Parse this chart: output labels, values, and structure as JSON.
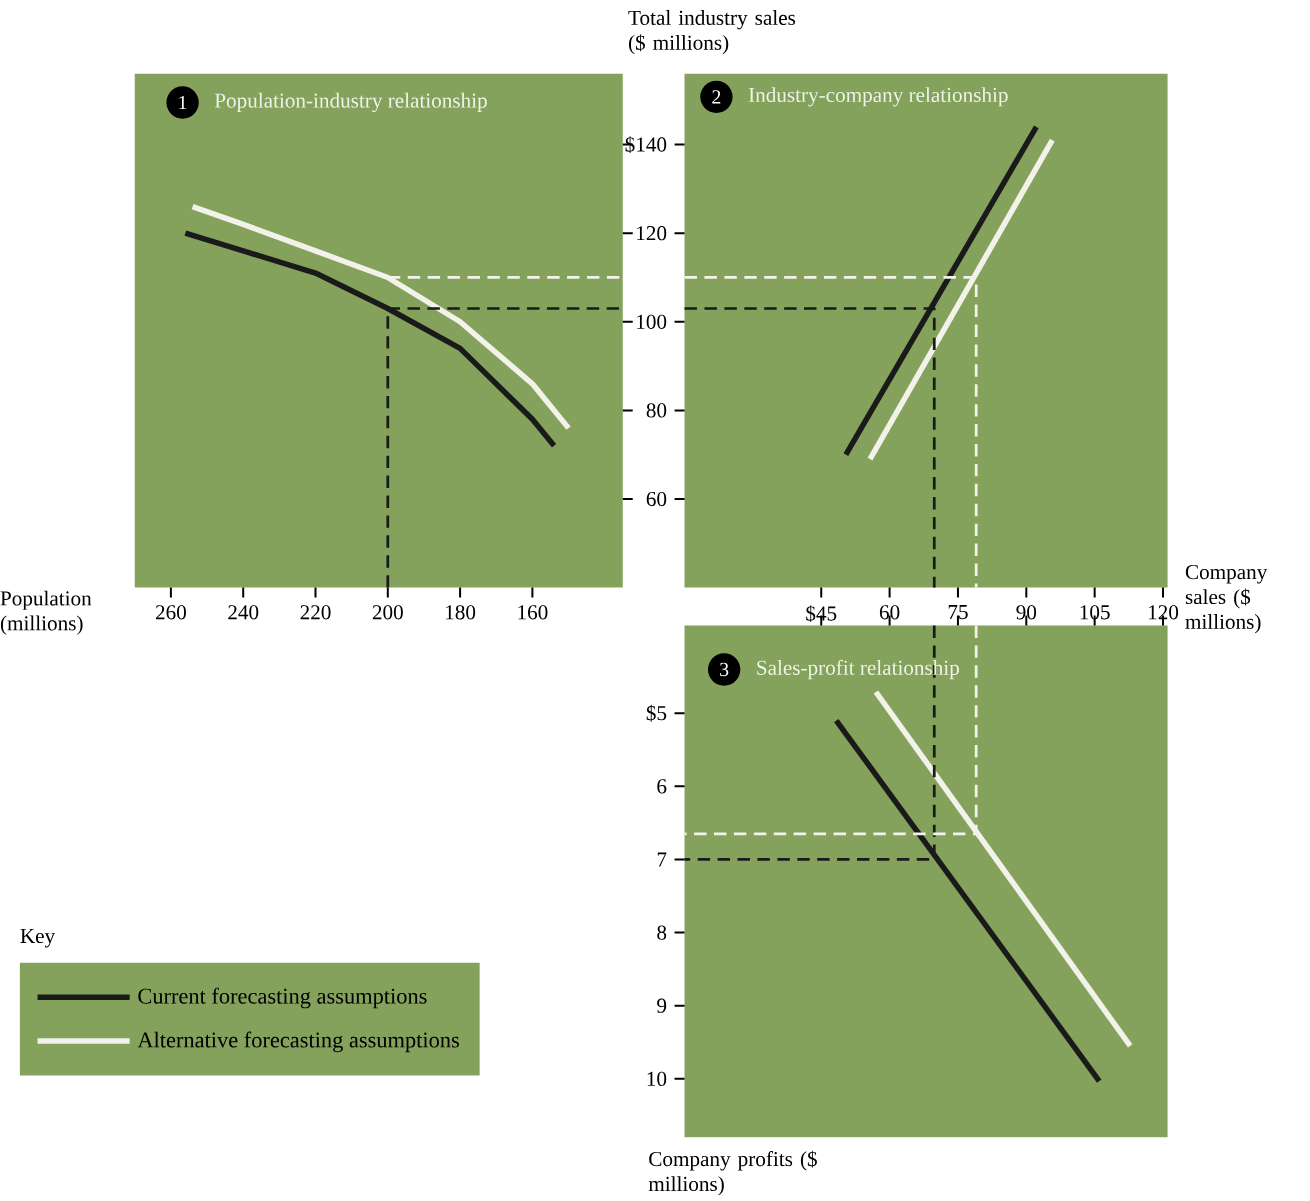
{
  "chart_data": [
    {
      "type": "line",
      "title": "Population-industry relationship",
      "annotations": [
        "1"
      ],
      "xlabel": "Population (millions)",
      "xlim": [
        270,
        135
      ],
      "xticks": [
        260,
        240,
        220,
        200,
        180,
        160
      ],
      "ylim": [
        40,
        156
      ],
      "yticks": [
        60,
        80,
        100,
        120,
        140
      ],
      "tick_labels": "x",
      "series": [
        {
          "color": "#1a1a1a",
          "x": [
            256,
            240,
            220,
            200,
            180,
            160,
            154
          ],
          "values": [
            120,
            116,
            111,
            103,
            94,
            78,
            72
          ]
        },
        {
          "color": "#f2f2ea",
          "x": [
            254,
            240,
            220,
            200,
            180,
            160,
            150
          ],
          "values": [
            126,
            122,
            116,
            110,
            100,
            86,
            76
          ]
        },
        {
          "color": "#1a1a1a",
          "line_style": "dashed",
          "x": [
            200,
            200,
            135
          ],
          "values": [
            40,
            103,
            103
          ]
        },
        {
          "color": "#f2f2ea",
          "line_style": "dashed",
          "x": [
            200,
            135
          ],
          "values": [
            110,
            110
          ]
        }
      ]
    },
    {
      "type": "line",
      "title": "Industry-company relationship",
      "annotations": [
        "2"
      ],
      "xlabel": "Company sales ($ millions)",
      "ylabel": "Total industry sales ($ millions)",
      "xlim": [
        15,
        121
      ],
      "xticks": [
        {
          "value": 45,
          "label": "$45"
        },
        60,
        75,
        90,
        105,
        120
      ],
      "ylim": [
        40,
        156
      ],
      "yticks": [
        60,
        80,
        100,
        120,
        {
          "value": 140,
          "label": "$140"
        }
      ],
      "series": [
        {
          "color": "#1a1a1a",
          "x": [
            50.4,
            92.2
          ],
          "values": [
            70,
            144
          ]
        },
        {
          "color": "#f2f2ea",
          "x": [
            55.7,
            95.7
          ],
          "values": [
            69,
            141
          ]
        },
        {
          "color": "#1a1a1a",
          "line_style": "dashed",
          "x": [
            15,
            69.8,
            69.8
          ],
          "values": [
            103,
            103,
            40
          ]
        },
        {
          "color": "#f2f2ea",
          "line_style": "dashed",
          "x": [
            15,
            79,
            79
          ],
          "values": [
            110,
            110,
            40
          ]
        }
      ]
    },
    {
      "type": "line",
      "title": "Sales-profit relationship",
      "annotations": [
        "3"
      ],
      "ylabel": "Company profits ($ millions)",
      "xlim": [
        15,
        121
      ],
      "xticks": [
        45,
        60,
        75,
        90,
        105,
        120
      ],
      "ylim": [
        10.8,
        3.8
      ],
      "yticks": [
        {
          "value": 5,
          "label": "$5"
        },
        6,
        7,
        8,
        9,
        10
      ],
      "tick_labels": "y",
      "legend": "left",
      "legend_title": "Key",
      "series": [
        {
          "name": "Current forecasting assumptions",
          "color": "#1a1a1a",
          "x": [
            48.3,
            106
          ],
          "values": [
            5.1,
            10.03
          ]
        },
        {
          "name": "Alternative forecasting assumptions",
          "color": "#f2f2ea",
          "x": [
            57,
            112.8
          ],
          "values": [
            4.71,
            9.55
          ]
        },
        {
          "color": "#1a1a1a",
          "line_style": "dashed",
          "x": [
            69.8,
            69.8,
            15
          ],
          "values": [
            3.8,
            7,
            7
          ]
        },
        {
          "color": "#f2f2ea",
          "line_style": "dashed",
          "x": [
            79,
            79,
            15
          ],
          "values": [
            3.8,
            6.65,
            6.65
          ]
        }
      ]
    }
  ]
}
